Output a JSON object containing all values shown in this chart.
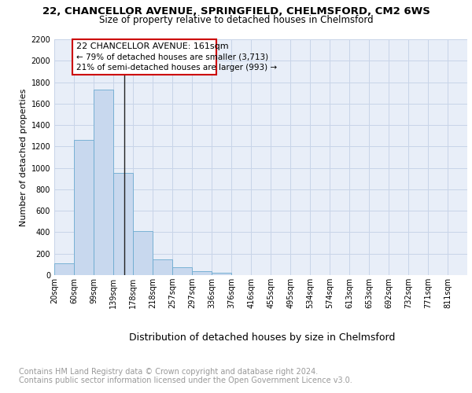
{
  "title1": "22, CHANCELLOR AVENUE, SPRINGFIELD, CHELMSFORD, CM2 6WS",
  "title2": "Size of property relative to detached houses in Chelmsford",
  "xlabel": "Distribution of detached houses by size in Chelmsford",
  "ylabel": "Number of detached properties",
  "footer1": "Contains HM Land Registry data © Crown copyright and database right 2024.",
  "footer2": "Contains public sector information licensed under the Open Government Licence v3.0.",
  "annotation_line1": "22 CHANCELLOR AVENUE: 161sqm",
  "annotation_line2": "← 79% of detached houses are smaller (3,713)",
  "annotation_line3": "21% of semi-detached houses are larger (993) →",
  "property_size": 161,
  "bar_left_edges": [
    20,
    60,
    99,
    139,
    178,
    218,
    257,
    297,
    336,
    376,
    416,
    455,
    495,
    534,
    574,
    613,
    653,
    692,
    732,
    771,
    811
  ],
  "bar_widths": [
    39,
    39,
    39,
    39,
    39,
    39,
    39,
    39,
    39,
    39,
    39,
    39,
    39,
    39,
    39,
    39,
    39,
    39,
    39,
    39,
    39
  ],
  "bar_heights": [
    110,
    1260,
    1730,
    950,
    410,
    150,
    75,
    40,
    25,
    0,
    0,
    0,
    0,
    0,
    0,
    0,
    0,
    0,
    0,
    0,
    0
  ],
  "bar_color": "#c8d8ee",
  "bar_edge_color": "#6baad0",
  "tick_labels": [
    "20sqm",
    "60sqm",
    "99sqm",
    "139sqm",
    "178sqm",
    "218sqm",
    "257sqm",
    "297sqm",
    "336sqm",
    "376sqm",
    "416sqm",
    "455sqm",
    "495sqm",
    "534sqm",
    "574sqm",
    "613sqm",
    "653sqm",
    "692sqm",
    "732sqm",
    "771sqm",
    "811sqm"
  ],
  "ylim": [
    0,
    2200
  ],
  "yticks": [
    0,
    200,
    400,
    600,
    800,
    1000,
    1200,
    1400,
    1600,
    1800,
    2000,
    2200
  ],
  "grid_color": "#c8d4e8",
  "bg_color": "#e8eef8",
  "vline_color": "#222222",
  "box_color": "#cc0000",
  "title1_fontsize": 9.5,
  "title2_fontsize": 8.5,
  "ylabel_fontsize": 8,
  "xlabel_fontsize": 9,
  "tick_fontsize": 7,
  "annotation_fontsize": 8,
  "footer_fontsize": 7
}
